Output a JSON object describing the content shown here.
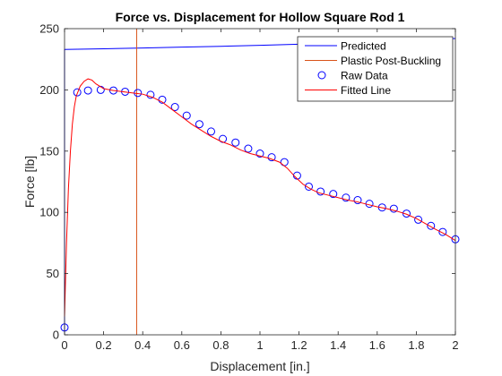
{
  "chart_data": {
    "type": "line",
    "title": "Force vs. Displacement for Hollow Square Rod 1",
    "xlabel": "Displacement [in.]",
    "ylabel": "Force [lb]",
    "xlim": [
      0,
      2
    ],
    "ylim": [
      0,
      250
    ],
    "xticks": [
      0,
      0.2,
      0.4,
      0.6,
      0.8,
      1,
      1.2,
      1.4,
      1.6,
      1.8,
      2
    ],
    "xtick_labels": [
      "0",
      "0.2",
      "0.4",
      "0.6",
      "0.8",
      "1",
      "1.2",
      "1.4",
      "1.6",
      "1.8",
      "2"
    ],
    "yticks": [
      0,
      50,
      100,
      150,
      200,
      250
    ],
    "ytick_labels": [
      "0",
      "50",
      "100",
      "150",
      "200",
      "250"
    ],
    "grid": false,
    "legend_position": "top-right",
    "colors": {
      "predicted": "#0000ff",
      "plastic": "#d95319",
      "raw": "#0000ff",
      "fitted": "#ff0000",
      "axes": "#262626",
      "title": "#000000"
    },
    "series": [
      {
        "name": "Predicted",
        "kind": "line",
        "x": [
          0,
          0,
          0.2,
          0.4,
          0.6,
          0.8,
          1.0,
          1.2,
          1.4,
          1.6,
          1.8,
          2.0
        ],
        "y": [
          0,
          233,
          233.6,
          234.2,
          234.9,
          235.6,
          236.4,
          237.3,
          238.3,
          239.4,
          240.6,
          242.0
        ]
      },
      {
        "name": "Plastic Post-Buckling",
        "kind": "line",
        "x": [
          0.369,
          0.369
        ],
        "y": [
          0,
          250
        ]
      },
      {
        "name": "Raw Data",
        "kind": "scatter",
        "x": [
          0.0,
          0.065,
          0.12,
          0.185,
          0.25,
          0.31,
          0.375,
          0.44,
          0.5,
          0.565,
          0.625,
          0.69,
          0.75,
          0.81,
          0.875,
          0.94,
          1.0,
          1.06,
          1.125,
          1.19,
          1.25,
          1.31,
          1.375,
          1.44,
          1.5,
          1.56,
          1.625,
          1.685,
          1.75,
          1.81,
          1.875,
          1.935,
          2.0
        ],
        "y": [
          6,
          198,
          199.5,
          200,
          199.5,
          198.5,
          197.5,
          196,
          192,
          186,
          179,
          172,
          166,
          160,
          157,
          152,
          148,
          145,
          141,
          130,
          121,
          117,
          115,
          112,
          110,
          107,
          104,
          103,
          99,
          94,
          89,
          84,
          78
        ]
      },
      {
        "name": "Fitted Line",
        "kind": "line",
        "x": [
          0.0,
          0.01,
          0.02,
          0.03,
          0.04,
          0.05,
          0.06,
          0.08,
          0.1,
          0.12,
          0.14,
          0.16,
          0.2,
          0.25,
          0.3,
          0.35,
          0.4,
          0.45,
          0.5,
          0.55,
          0.6,
          0.65,
          0.7,
          0.75,
          0.8,
          0.85,
          0.9,
          0.95,
          1.0,
          1.05,
          1.1,
          1.14,
          1.18,
          1.22,
          1.26,
          1.3,
          1.35,
          1.4,
          1.45,
          1.5,
          1.55,
          1.6,
          1.65,
          1.7,
          1.75,
          1.8,
          1.85,
          1.9,
          1.95,
          2.0
        ],
        "y": [
          15,
          75,
          120,
          150,
          172,
          186,
          195,
          203,
          207,
          209,
          208,
          205,
          201,
          199.5,
          198.5,
          197.5,
          196.5,
          194,
          190,
          184,
          178,
          172,
          167,
          162,
          158,
          155,
          151,
          148,
          146,
          144,
          141,
          136,
          129,
          123,
          119,
          116,
          114,
          112,
          110,
          108.5,
          106.5,
          104.5,
          103,
          101,
          98.5,
          95,
          90.5,
          86,
          82,
          77
        ]
      }
    ]
  }
}
